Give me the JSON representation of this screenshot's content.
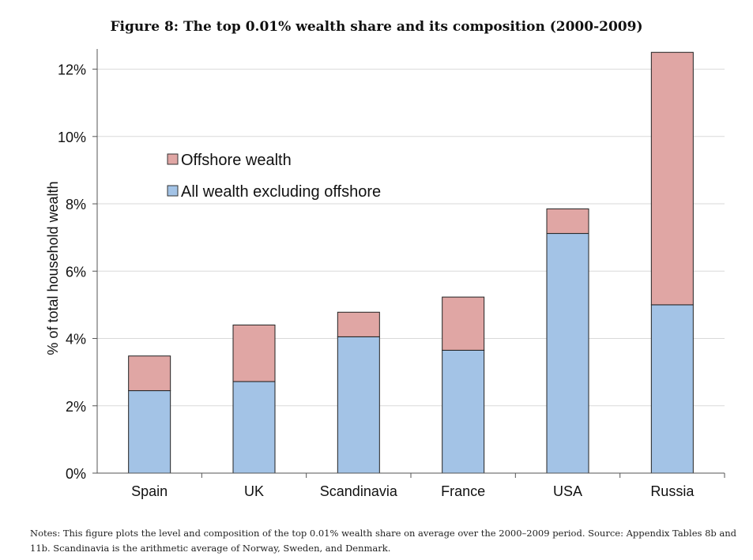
{
  "figure_title": "Figure 8: The top 0.01% wealth share and its composition (2000-2009)",
  "notes": "Notes: This figure plots the level and composition of the top 0.01% wealth share on average over the 2000–2009 period. Source: Appendix Tables 8b and 11b. Scandinavia is the arithmetic average of Norway, Sweden, and Denmark.",
  "colors": {
    "offshore": "#e0a6a4",
    "excluding_offshore": "#a3c3e6",
    "bar_stroke": "#222222",
    "grid": "#d9d9d9"
  },
  "chart_data": {
    "type": "bar",
    "stacked": true,
    "title": "Figure 8: The top 0.01% wealth share and its composition (2000-2009)",
    "xlabel": "",
    "ylabel": "% of total household wealth",
    "ylim": [
      0,
      12
    ],
    "yticks": [
      "0%",
      "2%",
      "4%",
      "6%",
      "8%",
      "10%",
      "12%"
    ],
    "categories": [
      "Spain",
      "UK",
      "Scandinavia",
      "France",
      "USA",
      "Russia"
    ],
    "series": [
      {
        "name": "All wealth excluding offshore",
        "values": [
          2.45,
          2.72,
          4.05,
          3.65,
          7.12,
          5.0
        ]
      },
      {
        "name": "Offshore wealth",
        "values": [
          1.03,
          1.68,
          0.73,
          1.58,
          0.73,
          7.5
        ]
      }
    ],
    "legend": {
      "placement": "upper-left",
      "order": [
        "Offshore wealth",
        "All wealth excluding offshore"
      ]
    },
    "grid": true
  }
}
